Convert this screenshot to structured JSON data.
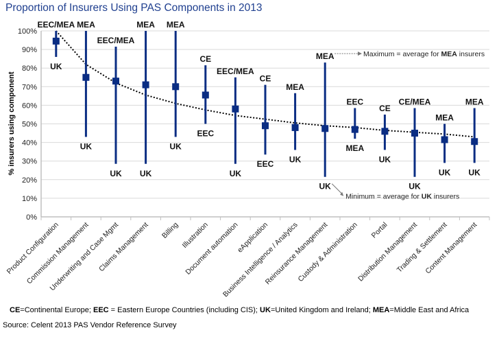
{
  "header": {
    "title": "Proportion of Insurers Using PAS Components in 2013"
  },
  "footer": {
    "legend_parts": [
      {
        "abbr": "CE",
        "text": "=Continental Europe; "
      },
      {
        "abbr": "EEC",
        "text": " = Eastern Europe Countries (including CIS); "
      },
      {
        "abbr": "UK",
        "text": "=United  Kingdom and Ireland; "
      },
      {
        "abbr": "MEA",
        "text": "=Middle  East and Africa"
      }
    ],
    "source": "Source: Celent 2013 PAS Vendor Reference Survey"
  },
  "colors": {
    "bar": "#0a2d83",
    "marker": "#0a2d83",
    "grid": "#d9d9d9",
    "axis": "#bfbfbf",
    "title": "#1f3f8f"
  },
  "chart_data": {
    "type": "scatter",
    "title": "Proportion of Insurers Using PAS Components in 2013",
    "xlabel": "",
    "ylabel": "% insurers using component",
    "ylim": [
      0,
      100
    ],
    "yticks": [
      "0%",
      "10%",
      "20%",
      "30%",
      "40%",
      "50%",
      "60%",
      "70%",
      "80%",
      "90%",
      "100%"
    ],
    "grid": true,
    "categories": [
      "Product Configuration",
      "Commission Management",
      "Underwriting and Case Mgmt",
      "Claims Management",
      "Billing",
      "Illustration",
      "Document automation",
      "eApplication",
      "Business Intelligence / Analytics",
      "Reinsurance Management",
      "Custody & Administration",
      "Portal",
      "Distribution Management",
      "Trading & Settlement",
      "Content Management"
    ],
    "series": [
      {
        "name": "Average",
        "values": [
          94.5,
          75,
          73,
          71,
          70,
          65.5,
          58,
          49,
          48,
          47.5,
          47,
          46,
          45,
          41.5,
          40.5
        ]
      },
      {
        "name": "Maximum",
        "values": [
          100,
          100,
          91.5,
          100,
          100,
          81.5,
          75,
          71,
          66.5,
          83,
          58.5,
          55,
          58.5,
          50,
          58.5
        ]
      },
      {
        "name": "Minimum",
        "values": [
          86,
          43,
          28.5,
          28.5,
          43,
          50,
          28.5,
          33.5,
          36,
          21.5,
          42,
          36,
          21.5,
          29,
          29
        ]
      }
    ],
    "max_labels": [
      "EEC/MEA",
      "MEA",
      "EEC/MEA",
      "MEA",
      "MEA",
      "CE",
      "EEC/MEA",
      "CE",
      "MEA",
      "MEA",
      "EEC",
      "CE",
      "CE/MEA",
      "MEA",
      "MEA"
    ],
    "min_labels": [
      "UK",
      "UK",
      "UK",
      "UK",
      "UK",
      "EEC",
      "UK",
      "EEC",
      "UK",
      "UK",
      "MEA",
      "UK",
      "UK",
      "UK",
      "UK"
    ],
    "trendline": {
      "type": "logarithmic",
      "values": [
        100,
        82,
        72,
        65.5,
        61,
        57.5,
        54.5,
        52.5,
        50.5,
        49,
        48,
        46.5,
        45.5,
        44.5,
        43
      ]
    },
    "annotations": [
      {
        "text_prefix": "Maximum  = average for ",
        "bold": "MEA",
        "text_suffix": " insurers",
        "points_from": "Reinsurance Management max label"
      },
      {
        "text_prefix": "Minimum  = average for ",
        "bold": "UK",
        "text_suffix": " insurers",
        "points_from": "Reinsurance Management min label"
      }
    ]
  }
}
